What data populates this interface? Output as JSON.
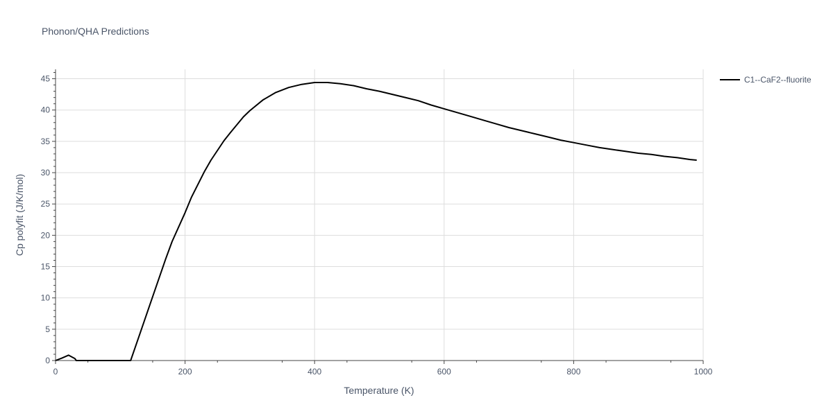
{
  "chart_data": {
    "type": "line",
    "title": "Phonon/QHA Predictions",
    "xlabel": "Temperature (K)",
    "ylabel": "Cp polyfit (J/K/mol)",
    "xlim": [
      0,
      1000
    ],
    "ylim": [
      0,
      46.5
    ],
    "x_ticks": [
      0,
      200,
      400,
      600,
      800,
      1000
    ],
    "y_ticks": [
      0,
      5,
      10,
      15,
      20,
      25,
      30,
      35,
      40,
      45
    ],
    "grid": true,
    "legend_position": "top-right",
    "colors": {
      "line": "#000000",
      "grid": "#dddddd",
      "text": "#4a5568"
    },
    "series": [
      {
        "name": "C1--CaF2--fluorite",
        "x": [
          0,
          10,
          20,
          30,
          32,
          40,
          60,
          80,
          100,
          116,
          130,
          150,
          170,
          180,
          200,
          210,
          230,
          240,
          260,
          270,
          290,
          300,
          320,
          340,
          360,
          380,
          400,
          420,
          440,
          460,
          480,
          500,
          520,
          540,
          560,
          580,
          600,
          620,
          640,
          660,
          680,
          700,
          720,
          740,
          760,
          780,
          800,
          820,
          840,
          860,
          880,
          900,
          920,
          940,
          960,
          980,
          990
        ],
        "y": [
          0,
          0.4,
          0.85,
          0.3,
          0,
          0,
          0,
          0,
          0,
          0,
          4.2,
          10.2,
          16.2,
          19,
          23.6,
          26.1,
          30.2,
          32,
          35.1,
          36.4,
          38.9,
          39.9,
          41.6,
          42.8,
          43.6,
          44.1,
          44.4,
          44.4,
          44.2,
          43.9,
          43.4,
          43.0,
          42.5,
          42.0,
          41.5,
          40.8,
          40.2,
          39.6,
          39.0,
          38.4,
          37.8,
          37.2,
          36.7,
          36.2,
          35.7,
          35.2,
          34.8,
          34.4,
          34.0,
          33.7,
          33.4,
          33.1,
          32.9,
          32.6,
          32.4,
          32.1,
          32.0
        ]
      }
    ]
  }
}
